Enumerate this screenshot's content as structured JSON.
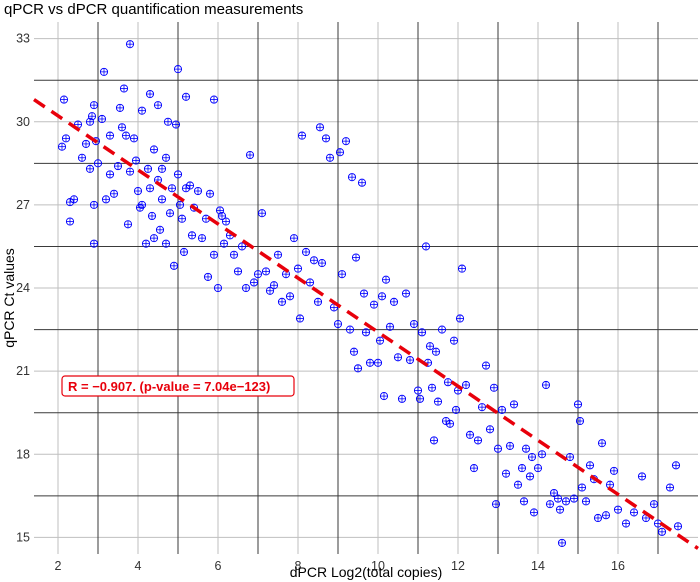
{
  "chart_data": {
    "type": "scatter",
    "title": "qPCR vs dPCR quantification measurements",
    "xlabel": "dPCR Log2(total copies)",
    "ylabel": "qPCR Ct values",
    "xlim": [
      1.4,
      18.0
    ],
    "ylim": [
      14.4,
      33.6
    ],
    "x_ticks": [
      2,
      4,
      6,
      8,
      10,
      12,
      14,
      16
    ],
    "x_tick_labels": [
      "2",
      "4",
      "6",
      "8",
      "10",
      "12",
      "14",
      "16"
    ],
    "y_ticks": [
      15,
      18,
      21,
      24,
      27,
      30,
      33
    ],
    "y_tick_labels": [
      "15",
      "18",
      "21",
      "24",
      "27",
      "30",
      "33"
    ],
    "x_major_grid": [
      3,
      5,
      7,
      9,
      11,
      13,
      15,
      17
    ],
    "x_minor_grid": [
      2,
      4,
      6,
      8,
      10,
      12,
      14,
      16
    ],
    "y_major_grid": [
      16.5,
      19.5,
      22.5,
      25.5,
      28.5,
      31.5
    ],
    "y_minor_grid": [
      15,
      18,
      21,
      24,
      27,
      30,
      33
    ],
    "grid": true,
    "point_color": "#0000ff",
    "line_color": "#e8000b",
    "grid_major_color": "#3a3a3a",
    "grid_minor_color": "#bfbfbf",
    "fit_line": {
      "x": [
        1.4,
        18.0
      ],
      "y": [
        30.8,
        14.6
      ]
    },
    "annotation": "R = −0.907. (p-value = 7.04e−123)",
    "points": [
      [
        2.1,
        29.1
      ],
      [
        2.15,
        30.8
      ],
      [
        2.2,
        29.4
      ],
      [
        2.3,
        27.1
      ],
      [
        2.3,
        26.4
      ],
      [
        2.4,
        27.2
      ],
      [
        2.5,
        29.9
      ],
      [
        2.6,
        28.7
      ],
      [
        2.7,
        29.2
      ],
      [
        2.8,
        30.0
      ],
      [
        2.8,
        28.3
      ],
      [
        2.85,
        30.2
      ],
      [
        2.9,
        27.0
      ],
      [
        2.9,
        30.6
      ],
      [
        2.95,
        29.3
      ],
      [
        2.9,
        25.6
      ],
      [
        3.0,
        28.5
      ],
      [
        3.1,
        30.1
      ],
      [
        3.15,
        31.8
      ],
      [
        3.2,
        27.2
      ],
      [
        3.3,
        28.1
      ],
      [
        3.3,
        29.5
      ],
      [
        3.4,
        27.4
      ],
      [
        3.5,
        28.4
      ],
      [
        3.55,
        30.5
      ],
      [
        3.6,
        29.8
      ],
      [
        3.65,
        31.2
      ],
      [
        3.7,
        29.5
      ],
      [
        3.75,
        26.3
      ],
      [
        3.8,
        28.2
      ],
      [
        3.8,
        32.8
      ],
      [
        3.9,
        29.4
      ],
      [
        3.95,
        28.6
      ],
      [
        4.0,
        27.5
      ],
      [
        4.05,
        26.9
      ],
      [
        4.1,
        27.0
      ],
      [
        4.1,
        30.4
      ],
      [
        4.2,
        25.6
      ],
      [
        4.25,
        28.3
      ],
      [
        4.3,
        27.6
      ],
      [
        4.3,
        31.0
      ],
      [
        4.35,
        26.6
      ],
      [
        4.4,
        25.8
      ],
      [
        4.4,
        29.0
      ],
      [
        4.5,
        30.6
      ],
      [
        4.5,
        27.9
      ],
      [
        4.55,
        26.1
      ],
      [
        4.6,
        28.3
      ],
      [
        4.6,
        27.2
      ],
      [
        4.7,
        25.6
      ],
      [
        4.7,
        28.7
      ],
      [
        4.75,
        30.0
      ],
      [
        4.8,
        26.7
      ],
      [
        4.85,
        27.6
      ],
      [
        4.9,
        24.8
      ],
      [
        4.95,
        29.9
      ],
      [
        5.0,
        28.1
      ],
      [
        5.0,
        31.9
      ],
      [
        5.05,
        27.0
      ],
      [
        5.1,
        26.5
      ],
      [
        5.15,
        25.3
      ],
      [
        5.2,
        27.6
      ],
      [
        5.2,
        30.9
      ],
      [
        5.3,
        27.7
      ],
      [
        5.35,
        25.9
      ],
      [
        5.4,
        26.9
      ],
      [
        5.5,
        27.5
      ],
      [
        5.6,
        25.8
      ],
      [
        5.7,
        26.5
      ],
      [
        5.75,
        24.4
      ],
      [
        5.8,
        27.4
      ],
      [
        5.9,
        30.8
      ],
      [
        5.9,
        25.2
      ],
      [
        6.0,
        24.0
      ],
      [
        6.05,
        26.8
      ],
      [
        6.1,
        26.6
      ],
      [
        6.15,
        25.6
      ],
      [
        6.2,
        26.4
      ],
      [
        6.3,
        25.9
      ],
      [
        6.4,
        25.2
      ],
      [
        6.5,
        24.6
      ],
      [
        6.6,
        25.5
      ],
      [
        6.7,
        24.0
      ],
      [
        6.8,
        28.8
      ],
      [
        6.9,
        24.2
      ],
      [
        7.0,
        24.5
      ],
      [
        7.1,
        26.7
      ],
      [
        7.2,
        24.6
      ],
      [
        7.3,
        23.9
      ],
      [
        7.4,
        24.1
      ],
      [
        7.5,
        25.2
      ],
      [
        7.6,
        23.5
      ],
      [
        7.7,
        24.5
      ],
      [
        7.8,
        23.7
      ],
      [
        7.9,
        25.8
      ],
      [
        8.0,
        24.7
      ],
      [
        8.05,
        22.9
      ],
      [
        8.1,
        29.5
      ],
      [
        8.2,
        25.3
      ],
      [
        8.3,
        24.2
      ],
      [
        8.4,
        25.0
      ],
      [
        8.5,
        23.5
      ],
      [
        8.55,
        29.8
      ],
      [
        8.6,
        24.9
      ],
      [
        8.7,
        29.4
      ],
      [
        8.8,
        28.7
      ],
      [
        8.9,
        23.3
      ],
      [
        9.0,
        22.7
      ],
      [
        9.05,
        28.9
      ],
      [
        9.1,
        24.5
      ],
      [
        9.2,
        29.3
      ],
      [
        9.3,
        22.5
      ],
      [
        9.35,
        28.0
      ],
      [
        9.4,
        21.7
      ],
      [
        9.45,
        25.1
      ],
      [
        9.5,
        21.1
      ],
      [
        9.6,
        27.8
      ],
      [
        9.65,
        23.8
      ],
      [
        9.7,
        22.4
      ],
      [
        9.8,
        21.3
      ],
      [
        9.9,
        23.4
      ],
      [
        10.0,
        21.3
      ],
      [
        10.05,
        22.1
      ],
      [
        10.1,
        23.7
      ],
      [
        10.15,
        20.1
      ],
      [
        10.2,
        24.3
      ],
      [
        10.3,
        22.6
      ],
      [
        10.4,
        23.5
      ],
      [
        10.5,
        21.5
      ],
      [
        10.6,
        20.0
      ],
      [
        10.7,
        23.8
      ],
      [
        10.8,
        21.4
      ],
      [
        10.9,
        22.7
      ],
      [
        11.0,
        20.3
      ],
      [
        11.05,
        20.0
      ],
      [
        11.1,
        22.4
      ],
      [
        11.2,
        25.5
      ],
      [
        11.25,
        21.3
      ],
      [
        11.3,
        21.9
      ],
      [
        11.35,
        20.4
      ],
      [
        11.4,
        18.5
      ],
      [
        11.45,
        21.7
      ],
      [
        11.5,
        19.9
      ],
      [
        11.6,
        22.5
      ],
      [
        11.7,
        19.2
      ],
      [
        11.75,
        20.6
      ],
      [
        11.8,
        19.1
      ],
      [
        11.9,
        22.1
      ],
      [
        11.95,
        19.6
      ],
      [
        12.0,
        20.3
      ],
      [
        12.05,
        22.9
      ],
      [
        12.1,
        24.7
      ],
      [
        12.2,
        20.5
      ],
      [
        12.3,
        18.7
      ],
      [
        12.4,
        17.5
      ],
      [
        12.5,
        18.5
      ],
      [
        12.6,
        19.7
      ],
      [
        12.7,
        21.2
      ],
      [
        12.8,
        18.9
      ],
      [
        12.9,
        20.4
      ],
      [
        12.95,
        16.2
      ],
      [
        13.0,
        18.2
      ],
      [
        13.1,
        19.6
      ],
      [
        13.2,
        17.3
      ],
      [
        13.3,
        18.3
      ],
      [
        13.4,
        19.8
      ],
      [
        13.5,
        16.9
      ],
      [
        13.6,
        17.5
      ],
      [
        13.65,
        16.3
      ],
      [
        13.7,
        18.2
      ],
      [
        13.8,
        17.2
      ],
      [
        13.85,
        17.9
      ],
      [
        13.9,
        15.9
      ],
      [
        14.0,
        17.5
      ],
      [
        14.1,
        18.0
      ],
      [
        14.2,
        20.5
      ],
      [
        14.3,
        16.2
      ],
      [
        14.4,
        16.6
      ],
      [
        14.5,
        16.4
      ],
      [
        14.55,
        16.0
      ],
      [
        14.6,
        14.8
      ],
      [
        14.7,
        16.3
      ],
      [
        14.8,
        17.9
      ],
      [
        14.9,
        16.4
      ],
      [
        15.0,
        19.8
      ],
      [
        15.05,
        19.2
      ],
      [
        15.1,
        16.8
      ],
      [
        15.2,
        16.3
      ],
      [
        15.3,
        17.6
      ],
      [
        15.4,
        17.1
      ],
      [
        15.5,
        15.7
      ],
      [
        15.6,
        18.4
      ],
      [
        15.7,
        15.8
      ],
      [
        15.8,
        16.9
      ],
      [
        15.9,
        17.4
      ],
      [
        16.0,
        16.0
      ],
      [
        16.2,
        15.5
      ],
      [
        16.4,
        15.9
      ],
      [
        16.6,
        17.2
      ],
      [
        16.7,
        15.7
      ],
      [
        16.9,
        16.2
      ],
      [
        17.0,
        15.5
      ],
      [
        17.1,
        15.2
      ],
      [
        17.3,
        16.8
      ],
      [
        17.45,
        17.6
      ],
      [
        17.5,
        15.4
      ]
    ]
  }
}
